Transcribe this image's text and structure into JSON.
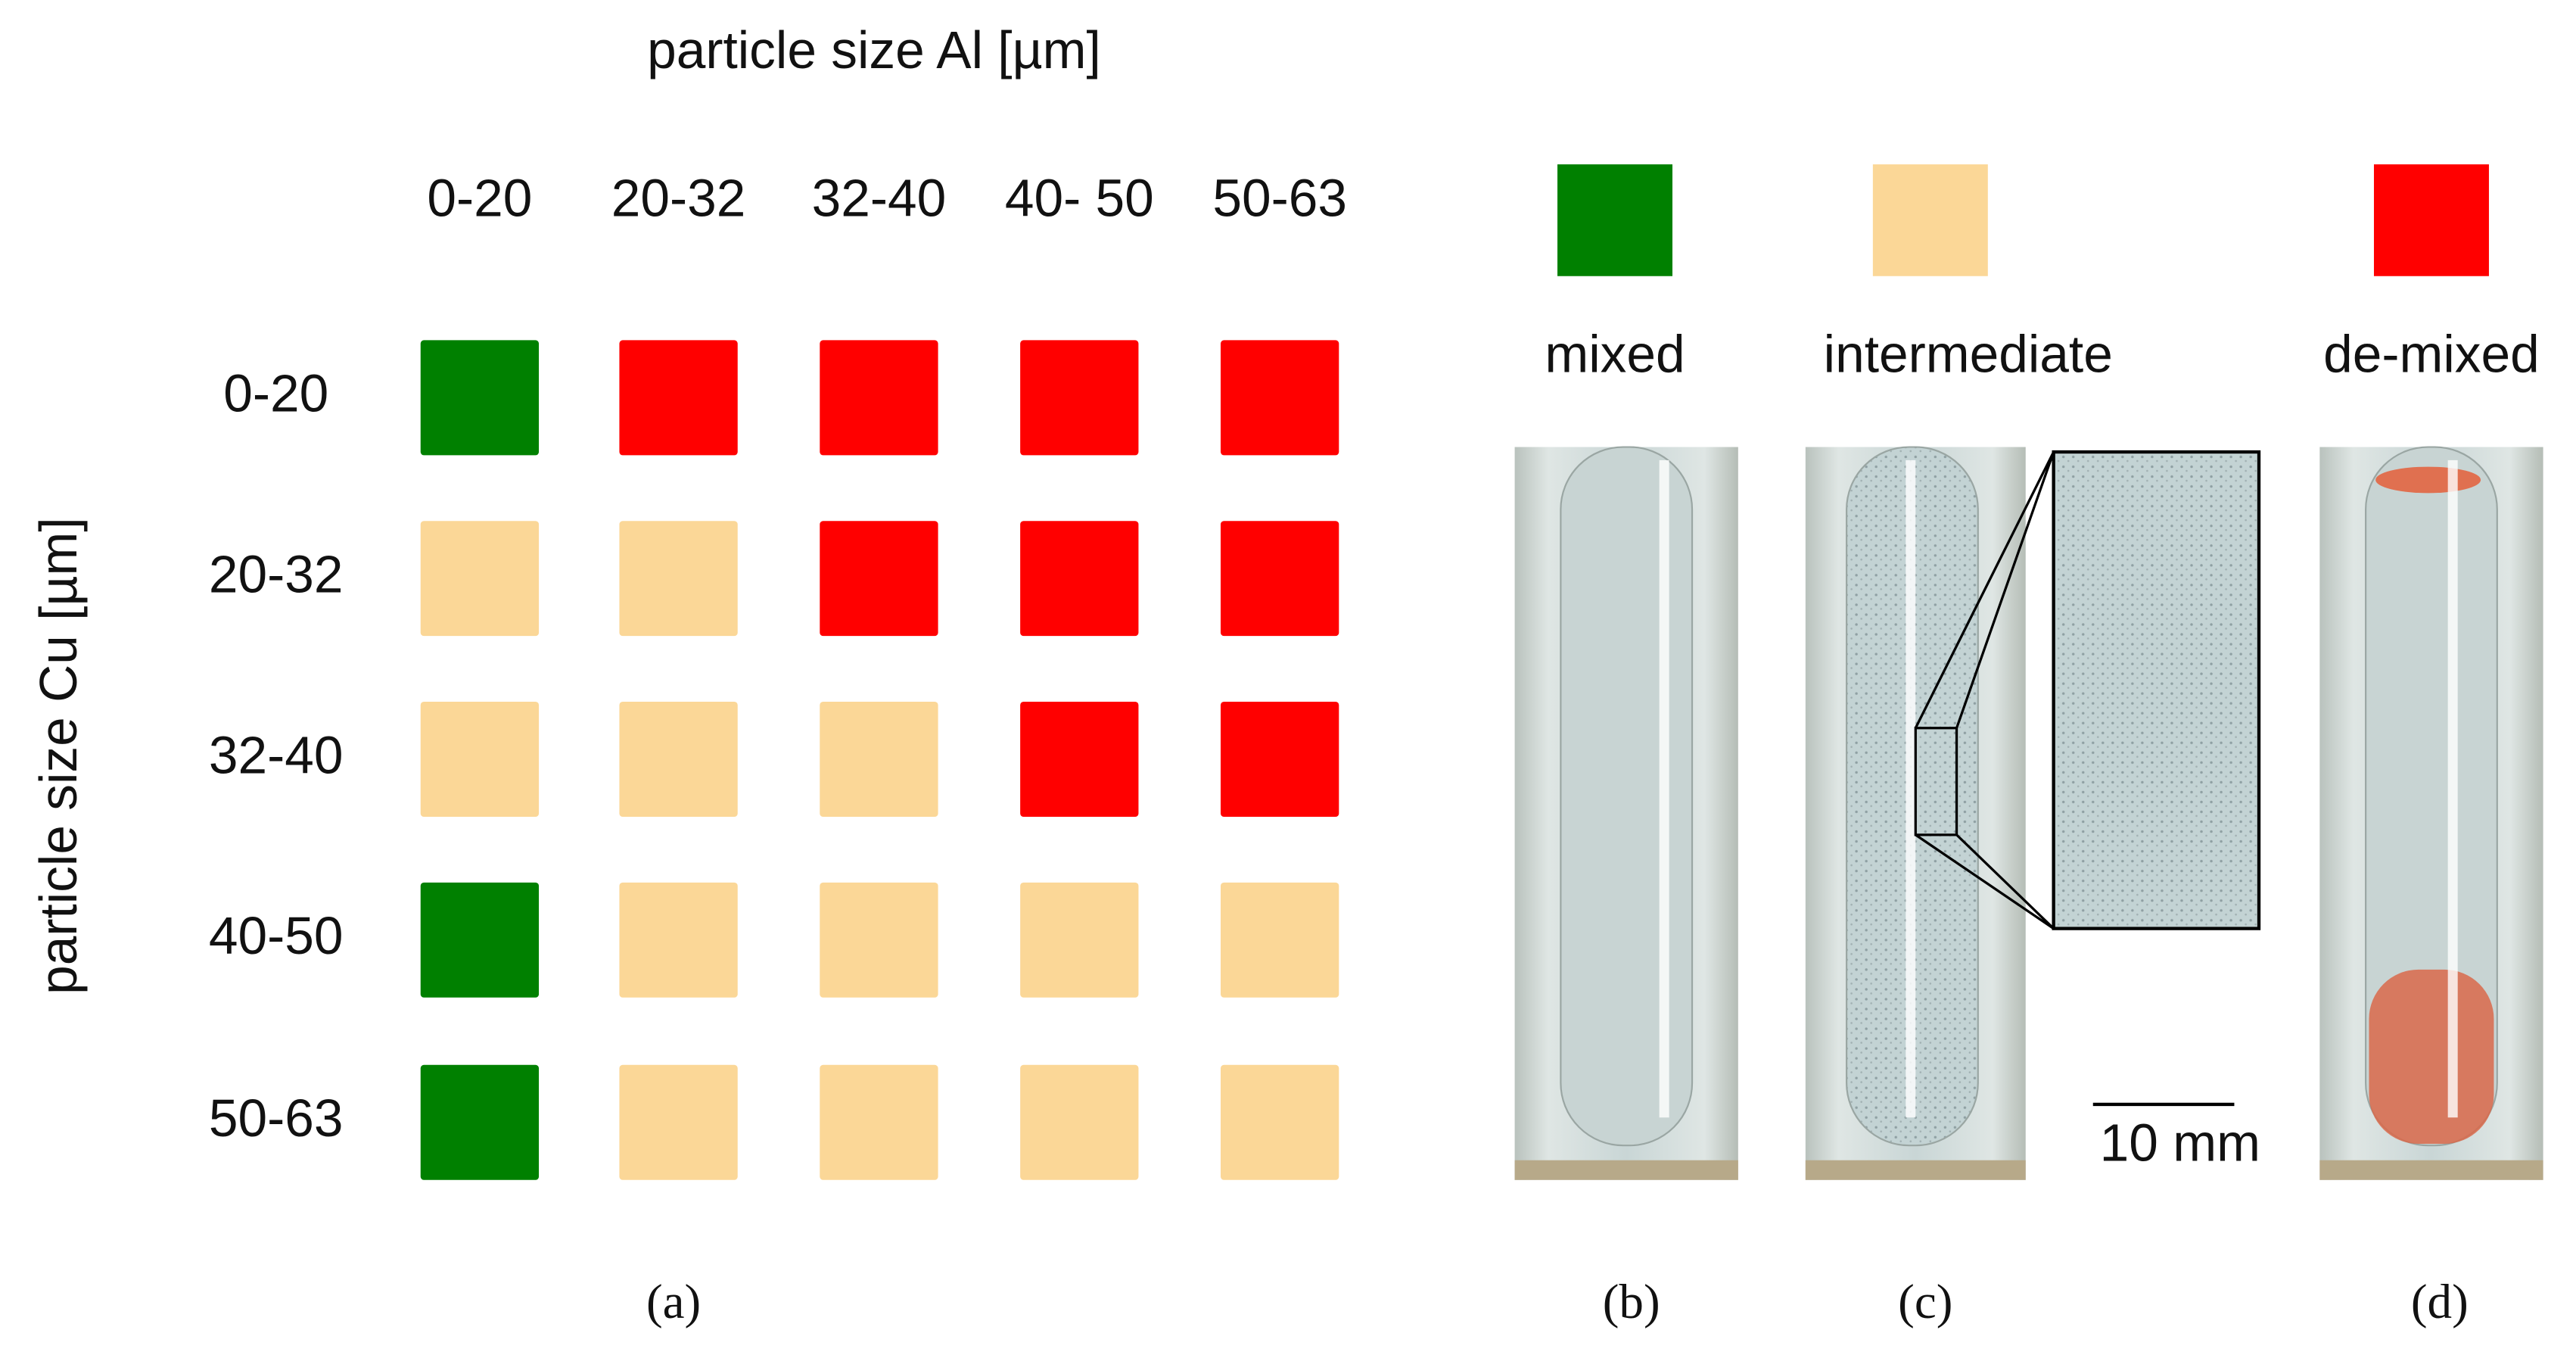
{
  "figure": {
    "x_title": "particle size Al [µm]",
    "y_title": "particle size Cu [µm]",
    "columns": [
      "0-20",
      "20-32",
      "32-40",
      "40- 50",
      "50-63"
    ],
    "rows": [
      "0-20",
      "20-32",
      "32-40",
      "40-50",
      "50-63"
    ],
    "cells": [
      [
        "mixed",
        "de-mixed",
        "de-mixed",
        "de-mixed",
        "de-mixed"
      ],
      [
        "intermediate",
        "intermediate",
        "de-mixed",
        "de-mixed",
        "de-mixed"
      ],
      [
        "intermediate",
        "intermediate",
        "intermediate",
        "de-mixed",
        "de-mixed"
      ],
      [
        "mixed",
        "intermediate",
        "intermediate",
        "intermediate",
        "intermediate"
      ],
      [
        "mixed",
        "intermediate",
        "intermediate",
        "intermediate",
        "intermediate"
      ]
    ],
    "legend": [
      {
        "label": "mixed",
        "color": "#008000"
      },
      {
        "label": "intermediate",
        "color": "#fbd797"
      },
      {
        "label": "de-mixed",
        "color": "#ff0000"
      }
    ],
    "scale_bar": "10 mm",
    "panel_labels": [
      "(a)",
      "(b)",
      "(c)",
      "(d)"
    ]
  }
}
